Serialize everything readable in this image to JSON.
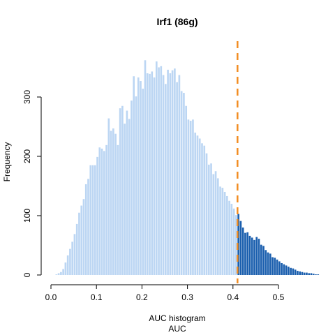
{
  "chart_data": {
    "type": "bar",
    "title": "Irf1 (86g)",
    "subtitle": "AUC histogram",
    "xlabel": "AUC",
    "ylabel": "Frequency",
    "xlim": [
      0,
      0.56
    ],
    "ylim": [
      0,
      365
    ],
    "x_ticks": [
      "0.0",
      "0.1",
      "0.2",
      "0.3",
      "0.4",
      "0.5"
    ],
    "y_ticks": [
      "0",
      "100",
      "200",
      "300"
    ],
    "bin_width": 0.005,
    "bin_start": 0.0,
    "threshold": 0.41,
    "grid": false,
    "colors": {
      "below_threshold": "#bcd6f3",
      "above_threshold": "#1b5fae",
      "threshold_line": "#f28d22"
    },
    "values": [
      0,
      0,
      1,
      3,
      5,
      10,
      21,
      33,
      44,
      56,
      69,
      86,
      105,
      117,
      128,
      153,
      162,
      185,
      185,
      185,
      199,
      215,
      213,
      209,
      219,
      264,
      243,
      247,
      238,
      219,
      281,
      285,
      255,
      277,
      263,
      294,
      335,
      301,
      333,
      327,
      314,
      362,
      340,
      339,
      343,
      333,
      360,
      350,
      352,
      337,
      322,
      346,
      340,
      345,
      348,
      325,
      337,
      310,
      307,
      285,
      262,
      260,
      262,
      240,
      235,
      230,
      222,
      218,
      205,
      186,
      188,
      170,
      175,
      163,
      149,
      147,
      140,
      133,
      125,
      120,
      112,
      101,
      103,
      91,
      80,
      71,
      72,
      66,
      63,
      59,
      64,
      61,
      51,
      49,
      42,
      38,
      36,
      30,
      29,
      26,
      23,
      20,
      18,
      16,
      14,
      12,
      11,
      9,
      7,
      6,
      5,
      4,
      4,
      3,
      3,
      2,
      1,
      1,
      0
    ]
  }
}
